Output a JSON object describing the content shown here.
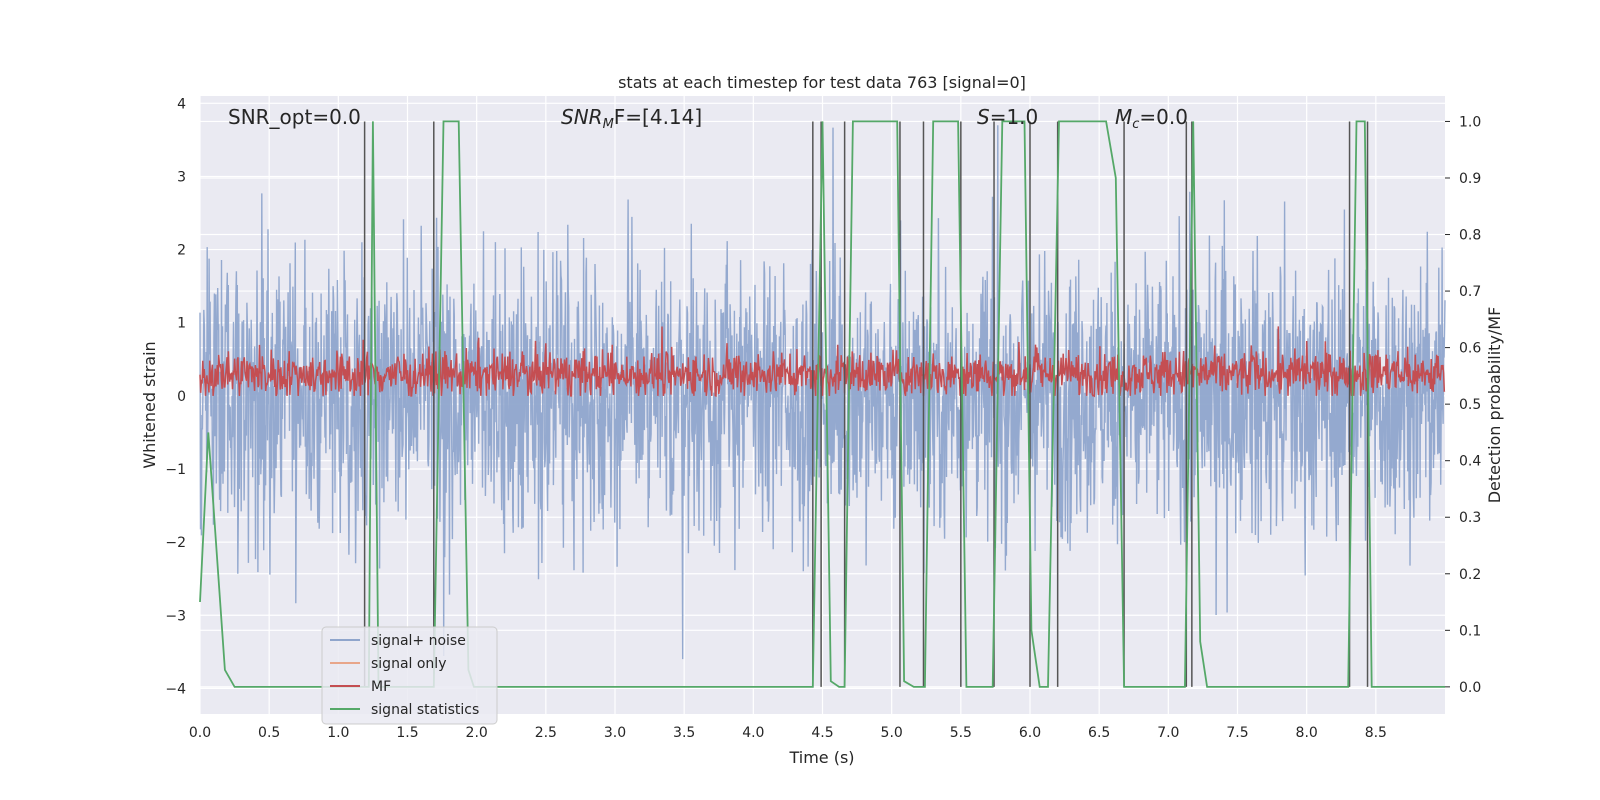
{
  "chart_data": {
    "type": "line",
    "title": "stats at each timestep for test data 763 [signal=0]",
    "xlabel": "Time (s)",
    "ylabel_left": "Whitened strain",
    "ylabel_right": "Detection probability/MF",
    "xlim": [
      0.0,
      9.0
    ],
    "ylim_left": [
      -4.35,
      4.1
    ],
    "ylim_right": [
      -0.048,
      1.045
    ],
    "x_ticks": [
      "0.0",
      "0.5",
      "1.0",
      "1.5",
      "2.0",
      "2.5",
      "3.0",
      "3.5",
      "4.0",
      "4.5",
      "5.0",
      "5.5",
      "6.0",
      "6.5",
      "7.0",
      "7.5",
      "8.0",
      "8.5"
    ],
    "y_ticks_left": [
      "4",
      "3",
      "2",
      "1",
      "0",
      "−1",
      "−2",
      "−3",
      "−4"
    ],
    "y_ticks_right": [
      "1.0",
      "0.9",
      "0.8",
      "0.7",
      "0.6",
      "0.5",
      "0.4",
      "0.3",
      "0.2",
      "0.1",
      "0.0"
    ],
    "grid": true,
    "legend_position": "lower-left",
    "annotations": {
      "snr_opt": "SNR_opt=0.0",
      "snr_mf_main": "SNR",
      "snr_mf_sub": "M",
      "snr_mf_rest": "F=[4.14]",
      "s_main": "S",
      "s_rest": "=1.0",
      "mc_main": "M",
      "mc_sub": "c",
      "mc_rest": "=0.0"
    },
    "series": [
      {
        "name": "signal+ noise",
        "color": "#8fa5cc",
        "note_range": [
          -3.6,
          3.7
        ]
      },
      {
        "name": "signal only",
        "color": "#e8a68a"
      },
      {
        "name": "MF",
        "color": "#c44e52",
        "note_range": [
          0.0,
          0.95
        ]
      },
      {
        "name": "signal statistics",
        "color": "#55a868"
      }
    ],
    "signal_statistics_points": [
      [
        0.0,
        0.15
      ],
      [
        0.06,
        0.45
      ],
      [
        0.18,
        0.03
      ],
      [
        0.25,
        0.0
      ],
      [
        1.19,
        0.0
      ],
      [
        1.22,
        0.0
      ],
      [
        1.25,
        1.0
      ],
      [
        1.29,
        0.0
      ],
      [
        1.69,
        0.0
      ],
      [
        1.76,
        1.0
      ],
      [
        1.87,
        1.0
      ],
      [
        1.94,
        0.03
      ],
      [
        1.98,
        0.0
      ],
      [
        4.43,
        0.0
      ],
      [
        4.5,
        1.0
      ],
      [
        4.56,
        0.01
      ],
      [
        4.62,
        0.0
      ],
      [
        4.66,
        0.0
      ],
      [
        4.72,
        1.0
      ],
      [
        5.04,
        1.0
      ],
      [
        5.09,
        0.01
      ],
      [
        5.16,
        0.0
      ],
      [
        5.24,
        0.0
      ],
      [
        5.3,
        1.0
      ],
      [
        5.48,
        1.0
      ],
      [
        5.54,
        0.0
      ],
      [
        5.73,
        0.0
      ],
      [
        5.8,
        1.0
      ],
      [
        5.96,
        1.0
      ],
      [
        6.01,
        0.1
      ],
      [
        6.07,
        0.0
      ],
      [
        6.13,
        0.0
      ],
      [
        6.21,
        1.0
      ],
      [
        6.55,
        1.0
      ],
      [
        6.62,
        0.9
      ],
      [
        6.68,
        0.0
      ],
      [
        7.12,
        0.0
      ],
      [
        7.18,
        1.0
      ],
      [
        7.23,
        0.08
      ],
      [
        7.28,
        0.0
      ],
      [
        8.3,
        0.0
      ],
      [
        8.36,
        1.0
      ],
      [
        8.42,
        1.0
      ],
      [
        8.47,
        0.0
      ],
      [
        9.0,
        0.0
      ]
    ],
    "detection_markers_x": [
      1.19,
      1.69,
      4.43,
      4.49,
      4.66,
      5.06,
      5.23,
      5.5,
      5.74,
      6.0,
      6.2,
      6.68,
      7.13,
      7.17,
      8.31,
      8.44
    ]
  }
}
